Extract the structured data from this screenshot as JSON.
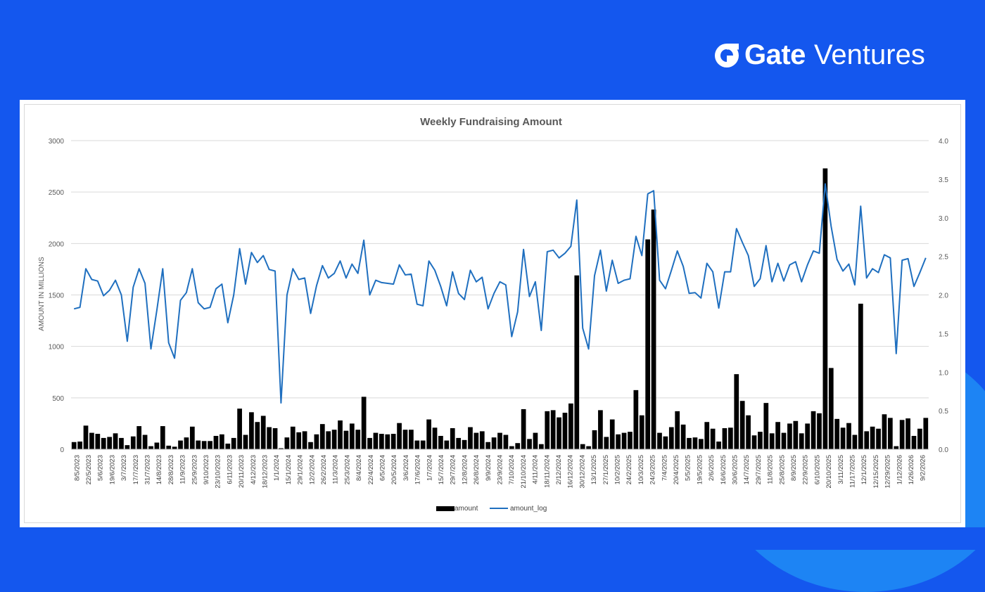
{
  "brand": {
    "word1": "Gate",
    "word2": "Ventures",
    "text_color": "#ffffff",
    "background_color": "#1457ee"
  },
  "chart_data": {
    "type": "bar+line",
    "title": "Weekly Fundraising Amount",
    "ylabel": "AMOUNT IN MILLIONS",
    "ylim": [
      0,
      3000
    ],
    "y_ticks": [
      "0",
      "500",
      "1000",
      "1500",
      "2000",
      "2500",
      "3000"
    ],
    "y2lim": [
      0,
      4.0
    ],
    "y2_ticks": [
      "0.0",
      "0.5",
      "1.0",
      "1.5",
      "2.0",
      "2.5",
      "3.0",
      "3.5",
      "4.0"
    ],
    "x_tick_labels": [
      "8/5/2023",
      "22/5/2023",
      "5/6/2023",
      "19/6/2023",
      "3/7/2023",
      "17/7/2023",
      "31/7/2023",
      "14/8/2023",
      "28/8/2023",
      "11/9/2023",
      "25/9/2023",
      "9/10/2023",
      "23/10/2023",
      "6/11/2023",
      "20/11/2023",
      "4/12/2023",
      "18/12/2023",
      "1/1/2024",
      "15/1/2024",
      "29/1/2024",
      "12/2/2024",
      "26/2/2024",
      "11/3/2024",
      "25/3/2024",
      "8/4/2024",
      "22/4/2024",
      "6/5/2024",
      "20/5/2024",
      "3/6/2024",
      "17/6/2024",
      "1/7/2024",
      "15/7/2024",
      "29/7/2024",
      "12/8/2024",
      "26/8/2024",
      "9/9/2024",
      "23/9/2024",
      "7/10/2024",
      "21/10/2024",
      "4/11/2024",
      "18/11/2024",
      "2/12/2024",
      "16/12/2024",
      "30/12/2024",
      "13/1/2025",
      "27/1/2025",
      "10/2/2025",
      "24/2/2025",
      "10/3/2025",
      "24/3/2025",
      "7/4/2025",
      "20/4/2025",
      "5/5/2025",
      "19/5/2025",
      "2/6/2025",
      "16/6/2025",
      "30/6/2025",
      "14/7/2025",
      "29/7/2025",
      "11/8/2025",
      "25/8/2025",
      "8/9/2025",
      "22/9/2025",
      "6/10/2025",
      "20/10/2025",
      "3/11/2025",
      "11/17/2025",
      "12/1/2025",
      "12/15/2025",
      "12/29/2025",
      "1/12/2026",
      "1/26/2026",
      "9/2/2026"
    ],
    "series": [
      {
        "name": "amount",
        "type": "bar",
        "color": "#000000",
        "values": [
          70,
          75,
          230,
          160,
          150,
          110,
          120,
          155,
          110,
          40,
          125,
          225,
          140,
          30,
          65,
          225,
          35,
          25,
          85,
          115,
          220,
          85,
          80,
          80,
          130,
          145,
          55,
          110,
          395,
          140,
          360,
          265,
          325,
          215,
          205,
          10,
          115,
          220,
          165,
          175,
          70,
          145,
          245,
          175,
          190,
          280,
          180,
          250,
          190,
          510,
          110,
          160,
          150,
          145,
          150,
          255,
          190,
          190,
          85,
          85,
          290,
          210,
          130,
          85,
          205,
          110,
          90,
          215,
          160,
          175,
          70,
          115,
          160,
          140,
          30,
          60,
          390,
          100,
          160,
          50,
          370,
          380,
          310,
          355,
          445,
          1690,
          50,
          30,
          185,
          380,
          120,
          290,
          145,
          160,
          170,
          575,
          330,
          2040,
          2330,
          160,
          125,
          215,
          370,
          240,
          110,
          115,
          100,
          265,
          200,
          75,
          205,
          210,
          730,
          470,
          330,
          135,
          170,
          450,
          155,
          265,
          160,
          250,
          275,
          155,
          250,
          370,
          350,
          2730,
          790,
          295,
          210,
          255,
          140,
          1415,
          175,
          220,
          200,
          340,
          305,
          30,
          285,
          300,
          130,
          200,
          305
        ]
      },
      {
        "name": "amount_log",
        "type": "line",
        "color": "#1f6fbf",
        "axis": "right",
        "values": [
          1.82,
          1.84,
          2.34,
          2.2,
          2.18,
          1.99,
          2.06,
          2.19,
          2.0,
          1.4,
          2.1,
          2.34,
          2.15,
          1.3,
          1.8,
          2.34,
          1.38,
          1.18,
          1.93,
          2.03,
          2.34,
          1.9,
          1.82,
          1.84,
          2.08,
          2.14,
          1.64,
          2.0,
          2.6,
          2.14,
          2.55,
          2.42,
          2.51,
          2.33,
          2.31,
          0.6,
          2.0,
          2.34,
          2.2,
          2.22,
          1.76,
          2.12,
          2.38,
          2.22,
          2.28,
          2.44,
          2.22,
          2.4,
          2.28,
          2.71,
          2.0,
          2.19,
          2.16,
          2.15,
          2.14,
          2.39,
          2.26,
          2.27,
          1.88,
          1.86,
          2.44,
          2.32,
          2.11,
          1.86,
          2.3,
          2.02,
          1.94,
          2.32,
          2.17,
          2.23,
          1.82,
          2.02,
          2.17,
          2.13,
          1.46,
          1.78,
          2.59,
          1.98,
          2.17,
          1.54,
          2.56,
          2.58,
          2.48,
          2.54,
          2.63,
          3.23,
          1.57,
          1.3,
          2.25,
          2.58,
          2.05,
          2.45,
          2.15,
          2.19,
          2.21,
          2.76,
          2.51,
          3.31,
          3.35,
          2.19,
          2.08,
          2.32,
          2.57,
          2.37,
          2.02,
          2.03,
          1.96,
          2.41,
          2.3,
          1.83,
          2.3,
          2.3,
          2.86,
          2.68,
          2.51,
          2.11,
          2.21,
          2.64,
          2.17,
          2.41,
          2.18,
          2.39,
          2.43,
          2.17,
          2.39,
          2.57,
          2.54,
          3.44,
          2.89,
          2.46,
          2.31,
          2.4,
          2.13,
          3.15,
          2.22,
          2.34,
          2.29,
          2.52,
          2.48,
          1.24,
          2.45,
          2.47,
          2.11,
          2.29,
          2.48
        ]
      }
    ],
    "legend": {
      "position": "bottom-center",
      "entries": [
        "amount",
        "amount_log"
      ]
    },
    "grid": true
  }
}
